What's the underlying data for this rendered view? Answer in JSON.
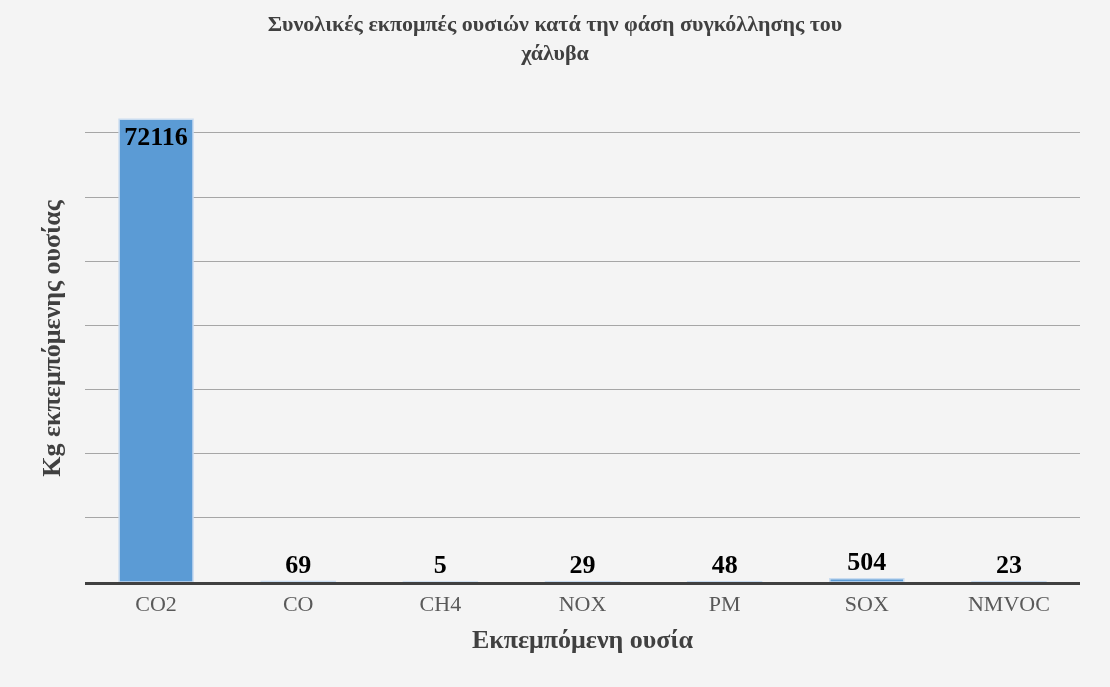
{
  "chart_data": {
    "type": "bar",
    "title": "Συνολικές εκπομπές ουσιών κατά την φάση συγκόλλησης του χάλυβα",
    "xlabel": "Εκπεμπόμενη ουσία",
    "ylabel": "Kg εκπεμπόμενης ουσίας",
    "categories": [
      "CO2",
      "CO",
      "CH4",
      "NOX",
      "PM",
      "SOX",
      "NMVOC"
    ],
    "values": [
      72116,
      69,
      5,
      29,
      48,
      504,
      23
    ],
    "color": "#5b9bd5",
    "yticks": [
      {
        "value": 0,
        "label": null
      },
      {
        "value": 10000,
        "label": null
      },
      {
        "value": 20000,
        "label": null
      },
      {
        "value": 30000,
        "label": null
      },
      {
        "value": 40000,
        "label": null
      },
      {
        "value": 50000,
        "label": null
      },
      {
        "value": 60000,
        "label": null
      },
      {
        "value": 70000,
        "label": null
      }
    ],
    "tick_labels": "x",
    "grid": "y",
    "data_labels": true
  }
}
